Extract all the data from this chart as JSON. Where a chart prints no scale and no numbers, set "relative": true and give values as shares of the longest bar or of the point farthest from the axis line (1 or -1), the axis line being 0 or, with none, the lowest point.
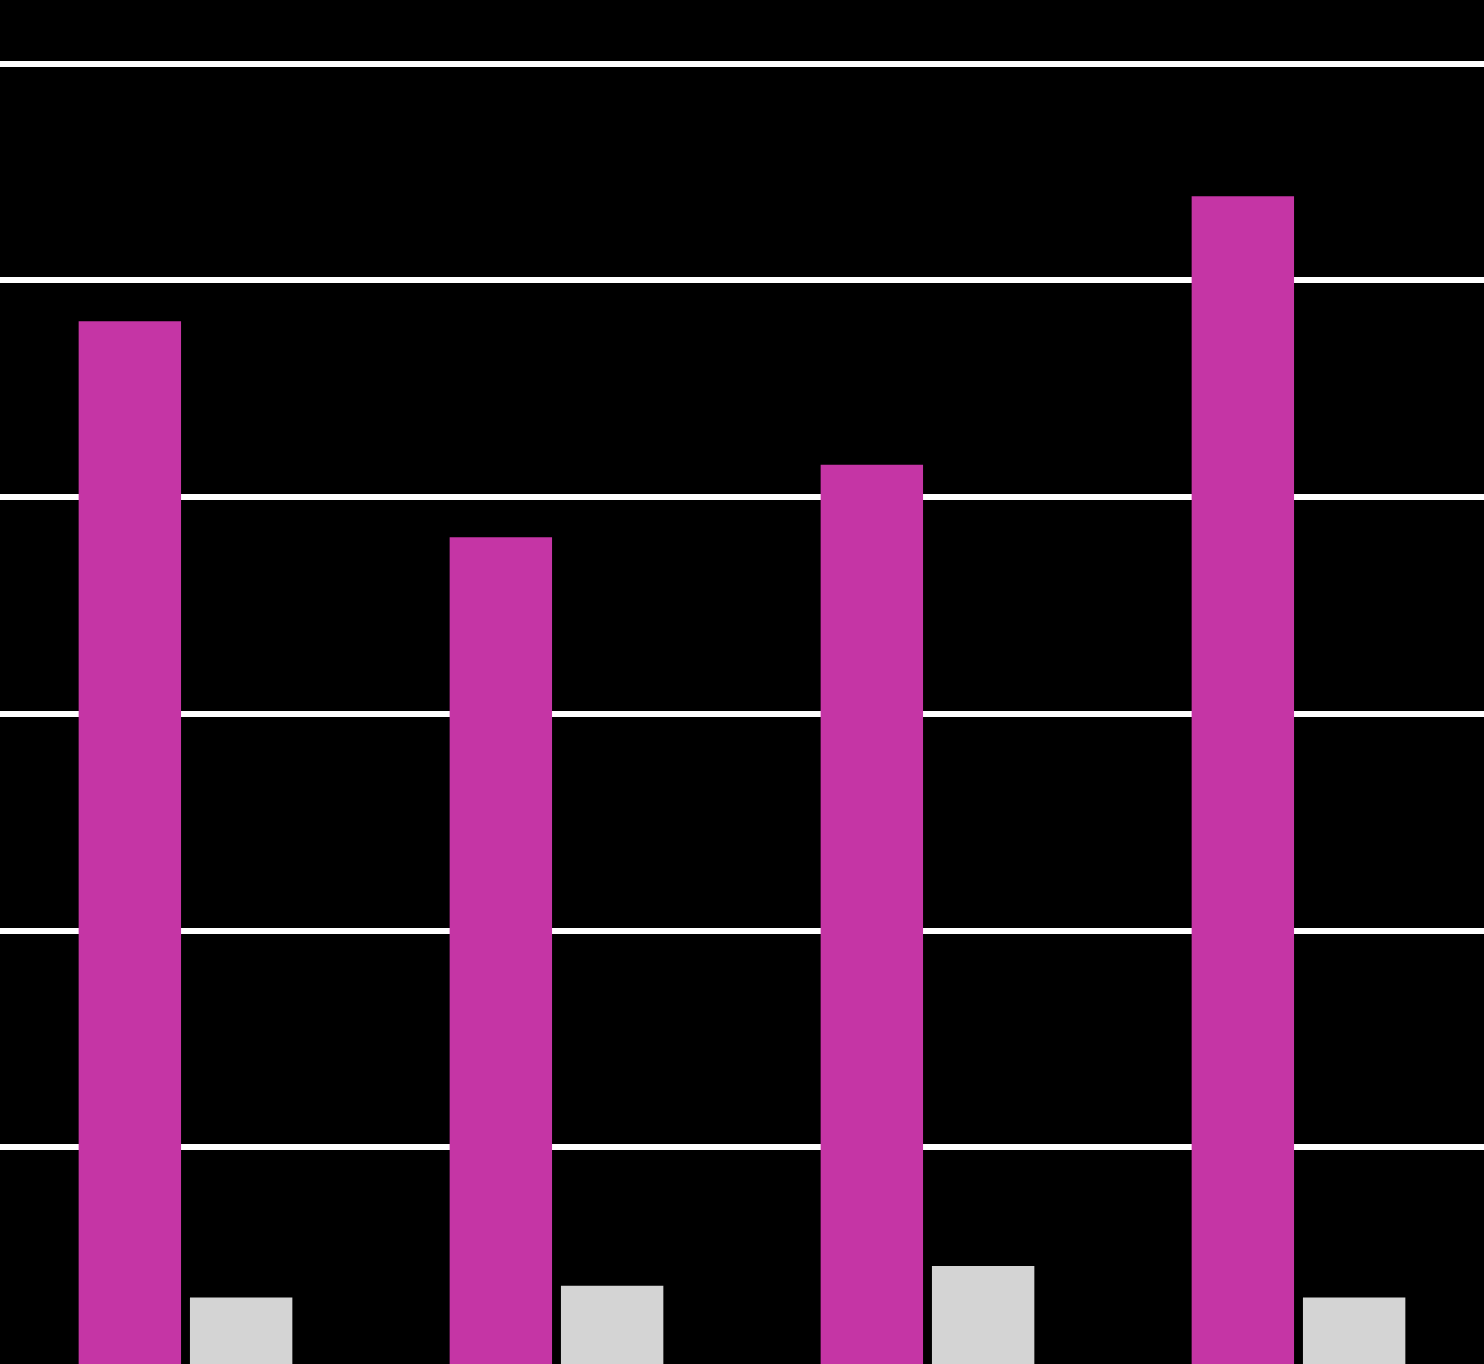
{
  "chart_data": {
    "type": "bar",
    "relative": true,
    "grid": "y",
    "categories": [
      null,
      null,
      null,
      null
    ],
    "series": [
      {
        "color": "#c535a5",
        "values": [
          0.893,
          0.708,
          0.77,
          1
        ]
      },
      {
        "color": "#d4d4d4",
        "values": [
          0.057,
          0.067,
          0.084,
          0.057
        ]
      }
    ]
  }
}
